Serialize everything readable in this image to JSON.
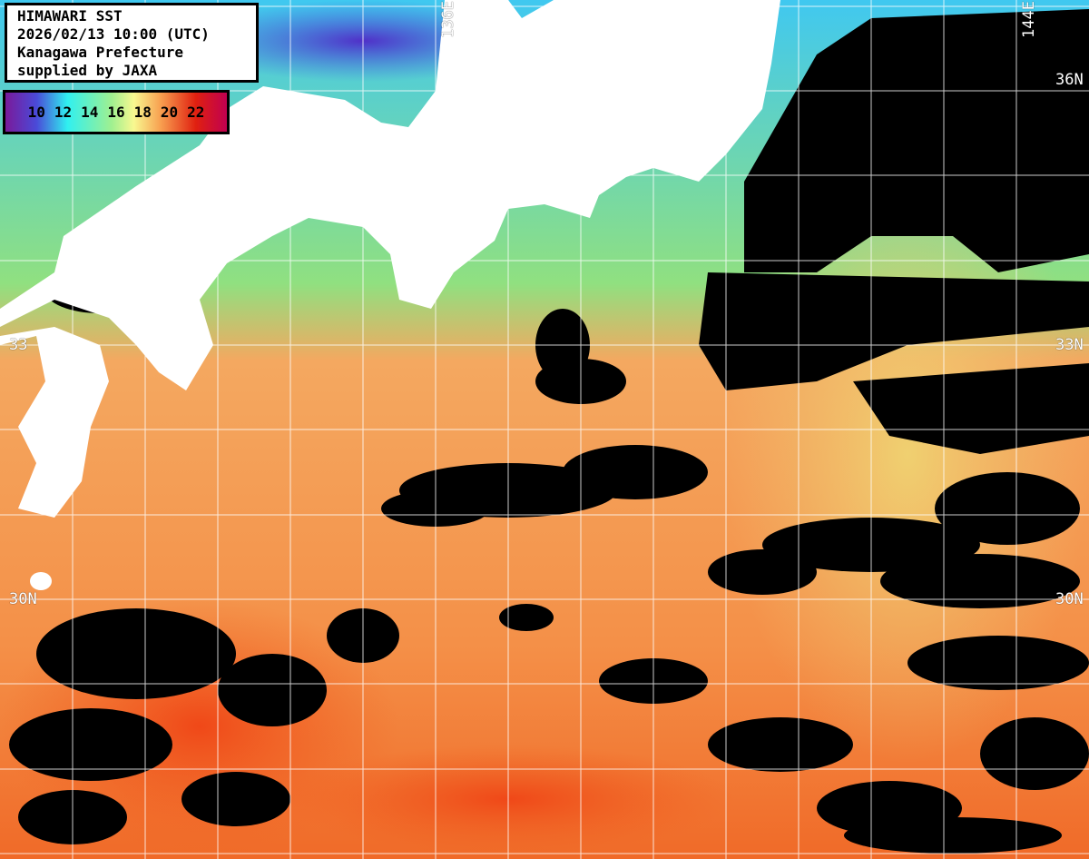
{
  "title": {
    "lines": [
      "HIMAWARI SST",
      "2026/02/13 10:00 (UTC)",
      "Kanagawa Prefecture",
      "supplied by JAXA"
    ]
  },
  "legend": {
    "labels": [
      "10",
      "12",
      "14",
      "16",
      "18",
      "20",
      "22"
    ],
    "colors": [
      "#7a1a9a",
      "#4a4ad8",
      "#30f0f0",
      "#a0f090",
      "#f8f890",
      "#f8a050",
      "#e02010",
      "#c00050"
    ]
  },
  "grid_labels": {
    "lon": [
      "136E",
      "144E"
    ],
    "lat_right": [
      "36N",
      "33N",
      "30N"
    ],
    "lat_left": [
      "33",
      "30N"
    ]
  },
  "colors": {
    "land": "#ffffff",
    "cloud": "#000000",
    "grid": "#ffffff"
  }
}
